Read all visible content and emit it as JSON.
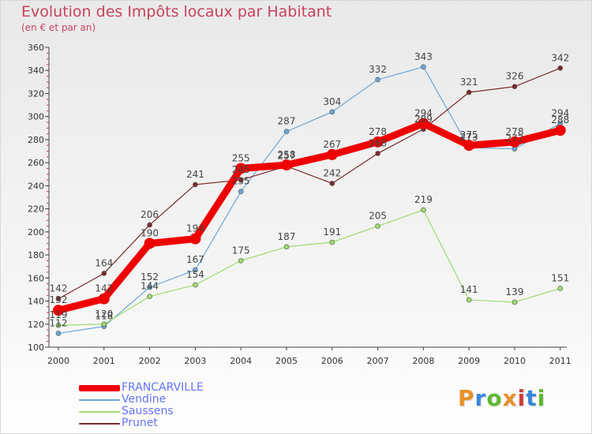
{
  "title": "Evolution des Impôts locaux par Habitant",
  "subtitle": "(en € et par an)",
  "logo": {
    "text": "Proxiti",
    "colors": [
      "#e8902a",
      "#3a86d8",
      "#5fb832",
      "#e8902a",
      "#d23b3b",
      "#3a86d8",
      "#5fb832"
    ]
  },
  "chart_data": {
    "type": "line",
    "title": "Evolution des Impôts locaux par Habitant",
    "subtitle": "(en € et par an)",
    "xlabel": "",
    "ylabel": "",
    "x": [
      "2000",
      "2001",
      "2002",
      "2003",
      "2004",
      "2005",
      "2006",
      "2007",
      "2008",
      "2009",
      "2010",
      "2011"
    ],
    "ylim": [
      100,
      360
    ],
    "yticks": [
      100,
      120,
      140,
      160,
      180,
      200,
      220,
      240,
      260,
      280,
      300,
      320,
      340,
      360
    ],
    "grid": false,
    "legend_position": "bottom-left",
    "series": [
      {
        "name": "FRANCARVILLE",
        "color": "#ee0000",
        "values": [
          132,
          142,
          190,
          194,
          255,
          258,
          267,
          278,
          294,
          275,
          278,
          288
        ]
      },
      {
        "name": "Vendine",
        "color": "#6aa6d8",
        "values": [
          112,
          118,
          152,
          167,
          235,
          287,
          304,
          332,
          343,
          273,
          272,
          294
        ]
      },
      {
        "name": "Saussens",
        "color": "#9ddc6e",
        "values": [
          119,
          120,
          144,
          154,
          175,
          187,
          191,
          205,
          219,
          141,
          139,
          151
        ]
      },
      {
        "name": "Prunet",
        "color": "#7a2a2a",
        "values": [
          142,
          164,
          206,
          241,
          245,
          257,
          242,
          268,
          289,
          321,
          326,
          342
        ]
      }
    ]
  }
}
